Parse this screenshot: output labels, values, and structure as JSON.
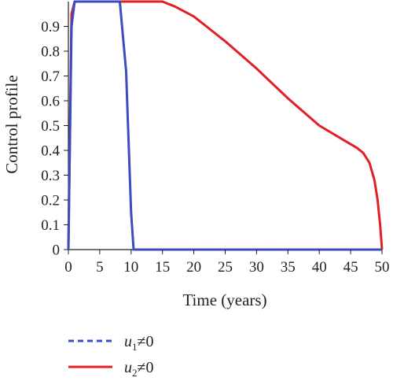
{
  "chart_data": {
    "type": "line",
    "title": "",
    "xlabel": "Time (years)",
    "ylabel": "Control profile",
    "xlim": [
      0,
      50
    ],
    "ylim": [
      0,
      1
    ],
    "x_ticks": [
      0,
      5,
      10,
      15,
      20,
      25,
      30,
      35,
      40,
      45,
      50
    ],
    "y_ticks": [
      0,
      0.1,
      0.2,
      0.3,
      0.4,
      0.5,
      0.6,
      0.7,
      0.8,
      0.9
    ],
    "y_tick_labels": [
      "0",
      "0.1",
      "0.2",
      "0.3",
      "0.4",
      "0.5",
      "0.6",
      "0.7",
      "0.8",
      "0.9"
    ],
    "grid": false,
    "legend_position": "bottom-left",
    "series": [
      {
        "name": "u1≠0",
        "legend": {
          "var": "u",
          "sub": "1",
          "rel": "≠0"
        },
        "color": "#3b4cc0",
        "line_style": "dashed",
        "x": [
          0,
          0.5,
          1,
          8.2,
          9.2,
          10,
          10.4,
          20,
          30,
          40,
          50
        ],
        "y": [
          0,
          0.9,
          1,
          1,
          0.72,
          0.15,
          0,
          0,
          0,
          0,
          0
        ]
      },
      {
        "name": "u2≠0",
        "legend": {
          "var": "u",
          "sub": "2",
          "rel": "≠0"
        },
        "color": "#e31e24",
        "line_style": "solid",
        "x": [
          0,
          0.5,
          1,
          15,
          17,
          20,
          25,
          30,
          35,
          40,
          44,
          46,
          47,
          48,
          48.8,
          49.3,
          49.7,
          50
        ],
        "y": [
          0,
          0.95,
          1,
          1,
          0.98,
          0.94,
          0.84,
          0.73,
          0.61,
          0.5,
          0.44,
          0.41,
          0.39,
          0.35,
          0.28,
          0.2,
          0.1,
          0
        ]
      }
    ]
  }
}
